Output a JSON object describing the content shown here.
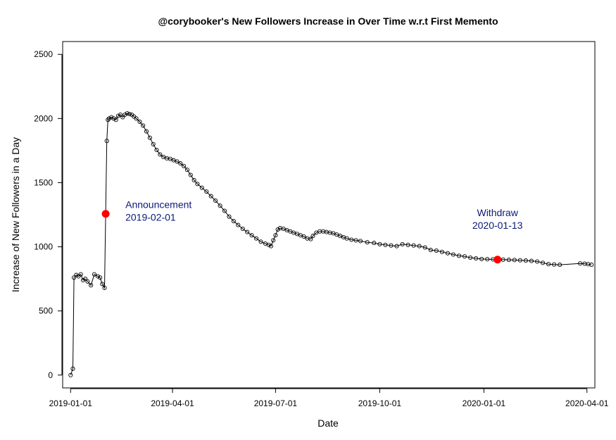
{
  "chart_data": {
    "type": "line",
    "title": "@corybooker's New Followers Increase in Over Time w.r.t First Memento",
    "xlabel": "Date",
    "ylabel": "Increase of New Followers in a Day",
    "x_axis": {
      "type": "date",
      "range": [
        "2018-12-25",
        "2020-04-08"
      ]
    },
    "ylim": [
      -100,
      2600
    ],
    "x_ticks": [
      "2019-01-01",
      "2019-04-01",
      "2019-07-01",
      "2019-10-01",
      "2020-01-01",
      "2020-04-01"
    ],
    "y_ticks": [
      0,
      500,
      1000,
      1500,
      2000,
      2500
    ],
    "grid": false,
    "legend": "none",
    "series": [
      {
        "marker": "open-circle",
        "color": "#000000",
        "points": [
          [
            "2019-01-01",
            0
          ],
          [
            "2019-01-03",
            50
          ],
          [
            "2019-01-04",
            760
          ],
          [
            "2019-01-06",
            780
          ],
          [
            "2019-01-08",
            770
          ],
          [
            "2019-01-10",
            785
          ],
          [
            "2019-01-12",
            740
          ],
          [
            "2019-01-14",
            750
          ],
          [
            "2019-01-16",
            730
          ],
          [
            "2019-01-19",
            700
          ],
          [
            "2019-01-22",
            785
          ],
          [
            "2019-01-25",
            770
          ],
          [
            "2019-01-27",
            760
          ],
          [
            "2019-01-29",
            710
          ],
          [
            "2019-01-31",
            680
          ],
          [
            "2019-02-01",
            1257
          ],
          [
            "2019-02-02",
            1825
          ],
          [
            "2019-02-03",
            1990
          ],
          [
            "2019-02-04",
            2000
          ],
          [
            "2019-02-06",
            2010
          ],
          [
            "2019-02-08",
            2000
          ],
          [
            "2019-02-10",
            1990
          ],
          [
            "2019-02-12",
            2020
          ],
          [
            "2019-02-14",
            2030
          ],
          [
            "2019-02-16",
            2010
          ],
          [
            "2019-02-18",
            2030
          ],
          [
            "2019-02-20",
            2040
          ],
          [
            "2019-02-22",
            2035
          ],
          [
            "2019-02-24",
            2030
          ],
          [
            "2019-02-26",
            2015
          ],
          [
            "2019-02-28",
            2000
          ],
          [
            "2019-03-03",
            1975
          ],
          [
            "2019-03-06",
            1945
          ],
          [
            "2019-03-09",
            1900
          ],
          [
            "2019-03-12",
            1850
          ],
          [
            "2019-03-15",
            1800
          ],
          [
            "2019-03-18",
            1755
          ],
          [
            "2019-03-21",
            1720
          ],
          [
            "2019-03-24",
            1700
          ],
          [
            "2019-03-27",
            1690
          ],
          [
            "2019-03-30",
            1685
          ],
          [
            "2019-04-02",
            1675
          ],
          [
            "2019-04-05",
            1665
          ],
          [
            "2019-04-08",
            1650
          ],
          [
            "2019-04-11",
            1630
          ],
          [
            "2019-04-14",
            1600
          ],
          [
            "2019-04-17",
            1560
          ],
          [
            "2019-04-20",
            1520
          ],
          [
            "2019-04-23",
            1490
          ],
          [
            "2019-04-27",
            1460
          ],
          [
            "2019-05-01",
            1430
          ],
          [
            "2019-05-05",
            1395
          ],
          [
            "2019-05-09",
            1360
          ],
          [
            "2019-05-13",
            1320
          ],
          [
            "2019-05-17",
            1280
          ],
          [
            "2019-05-21",
            1235
          ],
          [
            "2019-05-25",
            1200
          ],
          [
            "2019-05-29",
            1170
          ],
          [
            "2019-06-02",
            1140
          ],
          [
            "2019-06-06",
            1115
          ],
          [
            "2019-06-10",
            1090
          ],
          [
            "2019-06-14",
            1065
          ],
          [
            "2019-06-18",
            1040
          ],
          [
            "2019-06-22",
            1025
          ],
          [
            "2019-06-25",
            1015
          ],
          [
            "2019-06-27",
            1005
          ],
          [
            "2019-06-29",
            1050
          ],
          [
            "2019-07-01",
            1090
          ],
          [
            "2019-07-03",
            1135
          ],
          [
            "2019-07-05",
            1145
          ],
          [
            "2019-07-08",
            1140
          ],
          [
            "2019-07-11",
            1130
          ],
          [
            "2019-07-14",
            1120
          ],
          [
            "2019-07-17",
            1110
          ],
          [
            "2019-07-20",
            1100
          ],
          [
            "2019-07-23",
            1090
          ],
          [
            "2019-07-26",
            1080
          ],
          [
            "2019-07-29",
            1065
          ],
          [
            "2019-08-01",
            1060
          ],
          [
            "2019-08-03",
            1085
          ],
          [
            "2019-08-06",
            1110
          ],
          [
            "2019-08-09",
            1120
          ],
          [
            "2019-08-12",
            1120
          ],
          [
            "2019-08-15",
            1115
          ],
          [
            "2019-08-18",
            1110
          ],
          [
            "2019-08-21",
            1105
          ],
          [
            "2019-08-24",
            1095
          ],
          [
            "2019-08-27",
            1085
          ],
          [
            "2019-08-30",
            1075
          ],
          [
            "2019-09-02",
            1065
          ],
          [
            "2019-09-06",
            1055
          ],
          [
            "2019-09-10",
            1050
          ],
          [
            "2019-09-14",
            1045
          ],
          [
            "2019-09-20",
            1035
          ],
          [
            "2019-09-26",
            1030
          ],
          [
            "2019-10-01",
            1020
          ],
          [
            "2019-10-06",
            1015
          ],
          [
            "2019-10-11",
            1010
          ],
          [
            "2019-10-16",
            1005
          ],
          [
            "2019-10-21",
            1020
          ],
          [
            "2019-10-26",
            1015
          ],
          [
            "2019-10-31",
            1010
          ],
          [
            "2019-11-05",
            1005
          ],
          [
            "2019-11-10",
            995
          ],
          [
            "2019-11-15",
            975
          ],
          [
            "2019-11-20",
            970
          ],
          [
            "2019-11-25",
            960
          ],
          [
            "2019-11-30",
            950
          ],
          [
            "2019-12-05",
            940
          ],
          [
            "2019-12-10",
            930
          ],
          [
            "2019-12-15",
            925
          ],
          [
            "2019-12-20",
            915
          ],
          [
            "2019-12-25",
            910
          ],
          [
            "2019-12-30",
            905
          ],
          [
            "2020-01-04",
            903
          ],
          [
            "2020-01-09",
            902
          ],
          [
            "2020-01-13",
            900
          ],
          [
            "2020-01-18",
            900
          ],
          [
            "2020-01-23",
            898
          ],
          [
            "2020-01-28",
            897
          ],
          [
            "2020-02-02",
            895
          ],
          [
            "2020-02-07",
            893
          ],
          [
            "2020-02-12",
            890
          ],
          [
            "2020-02-17",
            885
          ],
          [
            "2020-02-22",
            875
          ],
          [
            "2020-02-27",
            865
          ],
          [
            "2020-03-03",
            862
          ],
          [
            "2020-03-08",
            860
          ],
          [
            "2020-03-26",
            870
          ],
          [
            "2020-03-30",
            868
          ],
          [
            "2020-04-02",
            865
          ],
          [
            "2020-04-05",
            860
          ]
        ]
      }
    ],
    "highlights": [
      {
        "x": "2019-02-01",
        "y": 1257,
        "color": "#ff0000",
        "label_lines": [
          "Announcement",
          "2019-02-01"
        ],
        "label_align": "start"
      },
      {
        "x": "2020-01-13",
        "y": 900,
        "color": "#ff0000",
        "label_lines": [
          "Withdraw",
          "2020-01-13"
        ],
        "label_align": "middle"
      }
    ],
    "annotation_color": "#0b1a7a"
  }
}
